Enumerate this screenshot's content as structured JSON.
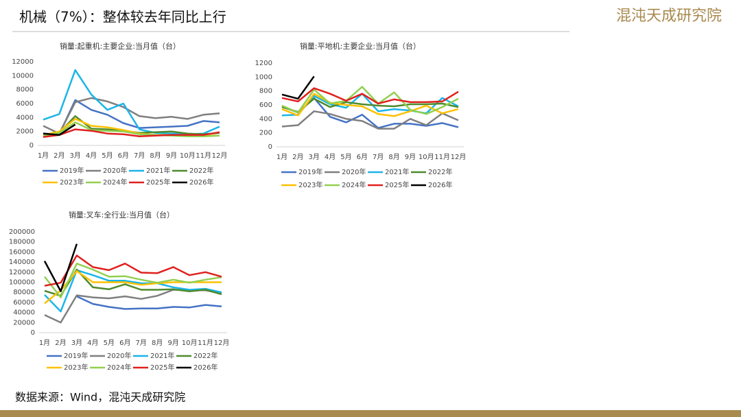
{
  "header": {
    "title": "机械（7%）：整体较去年同比上行",
    "logo": "混沌天成研究院"
  },
  "footer": {
    "source": "数据来源：Wind，混沌天成研究院"
  },
  "chart_data": [
    {
      "type": "line",
      "title": "销量:起重机:主要企业:当月值（台）",
      "categories": [
        "1月",
        "2月",
        "3月",
        "4月",
        "5月",
        "6月",
        "7月",
        "8月",
        "9月",
        "10月",
        "11月",
        "12月"
      ],
      "ylim": [
        0,
        12000
      ],
      "yticks": [
        0,
        2000,
        4000,
        6000,
        8000,
        10000,
        12000
      ],
      "series": [
        {
          "name": "2019年",
          "color": "#4472c4",
          "values": [
            1700,
            1600,
            6500,
            5100,
            4400,
            3200,
            2500,
            2600,
            2700,
            2800,
            3500,
            3300
          ]
        },
        {
          "name": "2020年",
          "color": "#7f7f7f",
          "values": [
            2800,
            1700,
            6200,
            6800,
            6300,
            5500,
            4200,
            3900,
            4100,
            3800,
            4400,
            4600
          ]
        },
        {
          "name": "2021年",
          "color": "#1ab5e8",
          "values": [
            3700,
            4500,
            10800,
            7300,
            5100,
            6000,
            2300,
            1800,
            1700,
            1600,
            1700,
            2700
          ]
        },
        {
          "name": "2022年",
          "color": "#4e8a2c",
          "values": [
            1500,
            1800,
            4200,
            2400,
            2300,
            2100,
            1800,
            1900,
            2000,
            1700,
            1600,
            1800
          ]
        },
        {
          "name": "2023年",
          "color": "#ffc000",
          "values": [
            1500,
            2000,
            3800,
            2800,
            2600,
            2200,
            1700,
            1500,
            1500,
            1400,
            1400,
            1400
          ]
        },
        {
          "name": "2024年",
          "color": "#92d050",
          "values": [
            1400,
            1800,
            3300,
            2200,
            2100,
            2000,
            1600,
            1500,
            1400,
            1300,
            1300,
            1400
          ]
        },
        {
          "name": "2025年",
          "color": "#e0201e",
          "values": [
            1200,
            1500,
            2300,
            2100,
            1700,
            1600,
            1300,
            1400,
            1500,
            1500,
            1500,
            1900
          ]
        },
        {
          "name": "2026年",
          "color": "#000000",
          "values": [
            1700,
            1500,
            3000,
            null,
            null,
            null,
            null,
            null,
            null,
            null,
            null,
            null
          ]
        }
      ]
    },
    {
      "type": "line",
      "title": "销量:平地机:主要企业:当月值（台）",
      "categories": [
        "1月",
        "2月",
        "3月",
        "4月",
        "5月",
        "6月",
        "7月",
        "8月",
        "9月",
        "10月",
        "11月",
        "12月"
      ],
      "ylim": [
        0,
        1200
      ],
      "yticks": [
        0,
        200,
        400,
        600,
        800,
        1000,
        1200
      ],
      "series": [
        {
          "name": "2019年",
          "color": "#4472c4",
          "values": [
            580,
            490,
            700,
            430,
            350,
            460,
            270,
            330,
            330,
            300,
            340,
            280
          ]
        },
        {
          "name": "2020年",
          "color": "#7f7f7f",
          "values": [
            290,
            310,
            510,
            470,
            400,
            370,
            260,
            260,
            400,
            310,
            480,
            380
          ]
        },
        {
          "name": "2021年",
          "color": "#1ab5e8",
          "values": [
            450,
            460,
            730,
            610,
            560,
            760,
            510,
            540,
            520,
            480,
            700,
            580
          ]
        },
        {
          "name": "2022年",
          "color": "#4e8a2c",
          "values": [
            570,
            500,
            690,
            570,
            640,
            610,
            590,
            580,
            610,
            610,
            620,
            570
          ]
        },
        {
          "name": "2023年",
          "color": "#ffc000",
          "values": [
            540,
            450,
            760,
            630,
            600,
            580,
            470,
            440,
            510,
            590,
            480,
            540
          ]
        },
        {
          "name": "2024年",
          "color": "#92d050",
          "values": [
            590,
            490,
            820,
            620,
            660,
            860,
            620,
            780,
            530,
            470,
            570,
            690
          ]
        },
        {
          "name": "2025年",
          "color": "#e0201e",
          "values": [
            700,
            650,
            840,
            760,
            660,
            760,
            620,
            680,
            640,
            640,
            650,
            790
          ]
        },
        {
          "name": "2026年",
          "color": "#000000",
          "values": [
            750,
            690,
            1010,
            null,
            null,
            null,
            null,
            null,
            null,
            null,
            null,
            null
          ]
        }
      ]
    },
    {
      "type": "line",
      "title": "销量:叉车:全行业:当月值（台）",
      "categories": [
        "1月",
        "2月",
        "3月",
        "4月",
        "5月",
        "6月",
        "7月",
        "8月",
        "9月",
        "10月",
        "11月",
        "12月"
      ],
      "ylim": [
        0,
        200000
      ],
      "yticks": [
        0,
        20000,
        40000,
        60000,
        80000,
        100000,
        120000,
        140000,
        160000,
        180000,
        200000
      ],
      "series": [
        {
          "name": "2019年",
          "color": "#4472c4",
          "values": [
            null,
            null,
            72000,
            57000,
            51000,
            47000,
            48000,
            48000,
            51000,
            50000,
            55000,
            52000
          ]
        },
        {
          "name": "2020年",
          "color": "#7f7f7f",
          "values": [
            35000,
            20000,
            74000,
            70000,
            68000,
            72000,
            67000,
            73000,
            85000,
            84000,
            84000,
            78000
          ]
        },
        {
          "name": "2021年",
          "color": "#1ab5e8",
          "values": [
            75000,
            42000,
            124000,
            114000,
            103000,
            103000,
            98000,
            98000,
            90000,
            85000,
            87000,
            80000
          ]
        },
        {
          "name": "2022年",
          "color": "#4e8a2c",
          "values": [
            83000,
            73000,
            125000,
            90000,
            86000,
            96000,
            85000,
            85000,
            86000,
            82000,
            85000,
            76000
          ]
        },
        {
          "name": "2023年",
          "color": "#ffc000",
          "values": [
            58000,
            84000,
            122000,
            100000,
            100000,
            100000,
            95000,
            98000,
            100000,
            100000,
            100000,
            100000
          ]
        },
        {
          "name": "2024年",
          "color": "#92d050",
          "values": [
            111000,
            70000,
            137000,
            125000,
            111000,
            112000,
            105000,
            99000,
            105000,
            99000,
            105000,
            110000
          ]
        },
        {
          "name": "2025年",
          "color": "#e0201e",
          "values": [
            93000,
            99000,
            153000,
            130000,
            124000,
            137000,
            119000,
            118000,
            130000,
            114000,
            120000,
            111000
          ]
        },
        {
          "name": "2026年",
          "color": "#000000",
          "values": [
            142000,
            82000,
            176000,
            null,
            null,
            null,
            null,
            null,
            null,
            null,
            null,
            null
          ]
        }
      ]
    }
  ]
}
